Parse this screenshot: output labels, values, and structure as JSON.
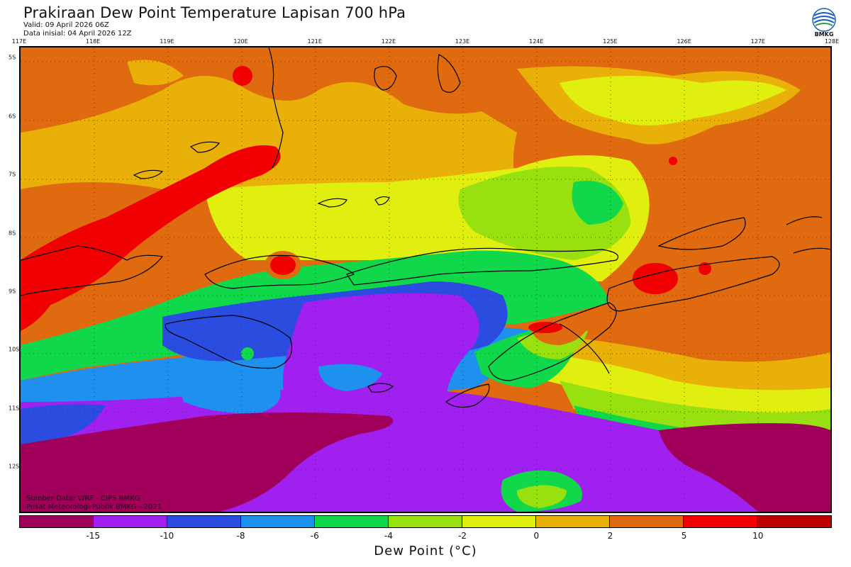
{
  "title": "Prakiraan Dew Point Temperature Lapisan 700 hPa",
  "valid": "Valid: 09 April 2026 06Z",
  "init": "Data inisial: 04 April 2026 12Z",
  "logo_text": "BMKG",
  "lon_labels": [
    "117E",
    "118E",
    "119E",
    "120E",
    "121E",
    "122E",
    "123E",
    "124E",
    "125E",
    "126E",
    "127E",
    "128E"
  ],
  "lat_labels": [
    "5S",
    "6S",
    "7S",
    "8S",
    "9S",
    "10S",
    "11S",
    "12S"
  ],
  "credit_source": "Sumber Data: WRF - CIPS BMKG",
  "credit_org": "Pusat Meteorologi Publik BMKG - 2021",
  "colorbar": {
    "colors": [
      "#a0005a",
      "#a020f0",
      "#2a4de0",
      "#1e90ee",
      "#10d84a",
      "#98e010",
      "#e0ee10",
      "#e8b008",
      "#e06a10",
      "#f00000",
      "#c00000"
    ],
    "ticks": [
      "-15",
      "-10",
      "-8",
      "-6",
      "-4",
      "-2",
      "0",
      "2",
      "5",
      "10"
    ],
    "label": "Dew Point (°C)"
  },
  "map": {
    "lon_range": [
      117,
      128
    ],
    "lat_range": [
      -4.8,
      -12.8
    ],
    "field_units": "°C"
  }
}
